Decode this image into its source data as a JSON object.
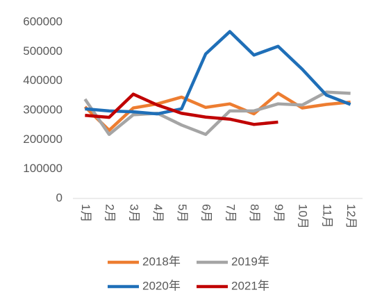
{
  "chart_data": {
    "type": "line",
    "categories": [
      "1月",
      "2月",
      "3月",
      "4月",
      "5月",
      "6月",
      "7月",
      "8月",
      "9月",
      "10月",
      "11月",
      "12月"
    ],
    "series": [
      {
        "name": "2018年",
        "color": "#ed7d31",
        "values": [
          312000,
          232000,
          308000,
          322000,
          345000,
          310000,
          322000,
          288000,
          358000,
          308000,
          320000,
          328000
        ]
      },
      {
        "name": "2019年",
        "color": "#a5a5a5",
        "values": [
          338000,
          218000,
          285000,
          290000,
          250000,
          218000,
          298000,
          298000,
          322000,
          318000,
          362000,
          358000
        ]
      },
      {
        "name": "2020年",
        "color": "#1f6fb8",
        "values": [
          305000,
          298000,
          295000,
          288000,
          305000,
          492000,
          568000,
          488000,
          518000,
          440000,
          352000,
          320000
        ]
      },
      {
        "name": "2021年",
        "color": "#c00000",
        "values": [
          283000,
          276000,
          355000,
          318000,
          290000,
          277000,
          270000,
          252000,
          260000,
          null,
          null,
          null
        ]
      }
    ],
    "ylim": [
      0,
      600000
    ],
    "yticks": [
      0,
      100000,
      200000,
      300000,
      400000,
      500000,
      600000
    ],
    "grid": false
  }
}
